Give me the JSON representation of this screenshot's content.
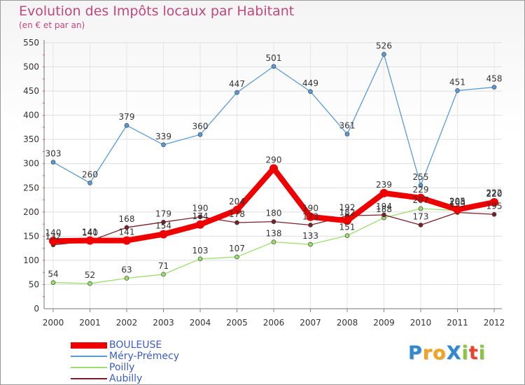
{
  "header": {
    "title": "Evolution des Impôts locaux par Habitant",
    "subtitle": "(en € et par an)"
  },
  "logo": {
    "text": "ProXiti",
    "letters": [
      "P",
      "r",
      "o",
      "X",
      "i",
      "t",
      "i"
    ],
    "colors": [
      "#2f89d1",
      "#f3a31b",
      "#f3a31b",
      "#2f89d1",
      "#8bc53f",
      "#e8432e",
      "#8bc53f"
    ]
  },
  "chart_data": {
    "type": "line",
    "title": "Evolution des Impôts locaux par Habitant",
    "subtitle": "(en € et par an)",
    "xlabel": "",
    "ylabel": "",
    "ylim": [
      0,
      550
    ],
    "yticks": [
      0,
      50,
      100,
      150,
      200,
      250,
      300,
      350,
      400,
      450,
      500,
      550
    ],
    "categories": [
      "2000",
      "2001",
      "2002",
      "2003",
      "2004",
      "2005",
      "2006",
      "2007",
      "2008",
      "2009",
      "2010",
      "2011",
      "2012"
    ],
    "legend_position": "bottom-left",
    "series": [
      {
        "name": "BOULEUSE",
        "color": "#ee0000",
        "emphasis": true,
        "values": [
          140,
          141,
          141,
          154,
          174,
          204,
          290,
          190,
          182,
          239,
          229,
          205,
          220
        ]
      },
      {
        "name": "Méry-Prémecy",
        "color": "#5b9bd5",
        "emphasis": false,
        "values": [
          303,
          260,
          379,
          339,
          360,
          447,
          501,
          449,
          361,
          526,
          255,
          451,
          458
        ]
      },
      {
        "name": "Poilly",
        "color": "#9bde6b",
        "emphasis": false,
        "values": [
          54,
          52,
          63,
          71,
          103,
          107,
          138,
          133,
          151,
          188,
          207,
          203,
          222
        ]
      },
      {
        "name": "Aubilly",
        "color": "#7b1f2a",
        "emphasis": false,
        "values": [
          132,
          140,
          168,
          179,
          190,
          178,
          180,
          173,
          192,
          194,
          173,
          199,
          195
        ]
      }
    ]
  }
}
